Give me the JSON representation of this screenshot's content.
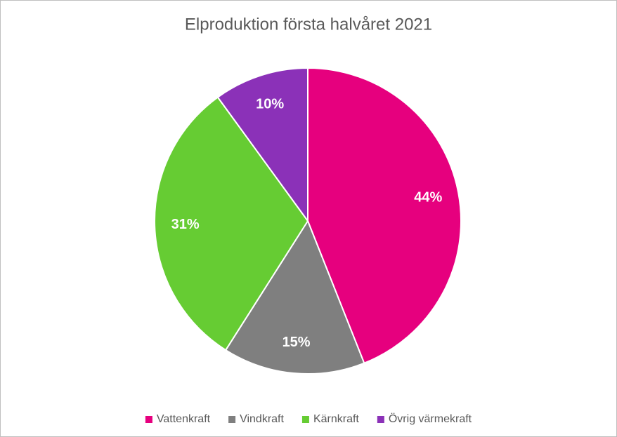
{
  "chart_data": {
    "type": "pie",
    "title": "Elproduktion första halvåret 2021",
    "categories": [
      "Vattenkraft",
      "Vindkraft",
      "Kärnkraft",
      "Övrig värmekraft"
    ],
    "values": [
      44,
      15,
      31,
      10
    ],
    "value_labels": [
      "44%",
      "15%",
      "31%",
      "10%"
    ],
    "colors": [
      "#e6007e",
      "#7f7f7f",
      "#66cc33",
      "#8b31b8"
    ],
    "legend": "bottom"
  }
}
